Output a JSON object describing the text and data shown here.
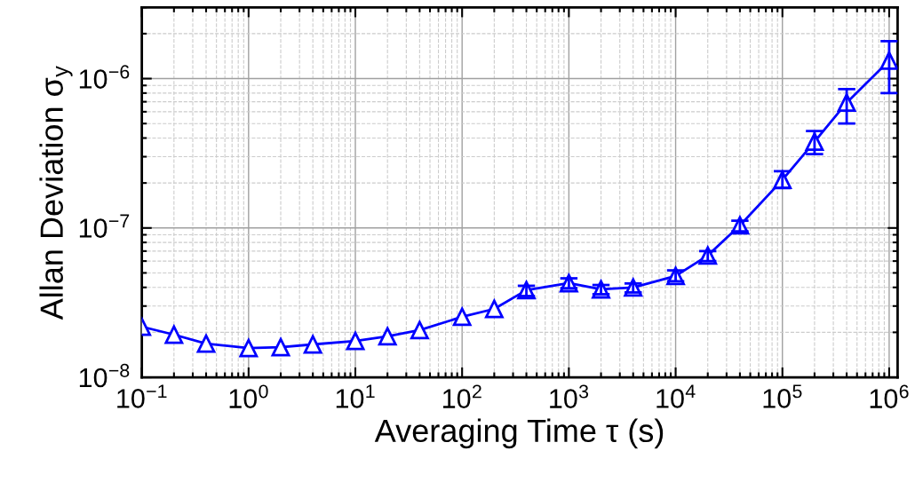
{
  "chart_data": {
    "type": "line",
    "xlabel": "Averaging Time τ (s)",
    "ylabel": "Allan Deviation σ$_{y}$",
    "log": "xy",
    "grid": true,
    "marker": "triangle",
    "line_style": "solid",
    "xlim": [
      0.1,
      1200000
    ],
    "ylim": [
      1e-08,
      3e-06
    ],
    "xticks": [
      {
        "value": 0.1,
        "label": "10$^{−1}$"
      },
      {
        "value": 1,
        "label": "10$^{0}$"
      },
      {
        "value": 10,
        "label": "10$^{1}$"
      },
      {
        "value": 100,
        "label": "10$^{2}$"
      },
      {
        "value": 1000,
        "label": "10$^{3}$"
      },
      {
        "value": 10000,
        "label": "10$^{4}$"
      },
      {
        "value": 100000,
        "label": "10$^{5}$"
      },
      {
        "value": 1000000,
        "label": "10$^{6}$"
      }
    ],
    "yticks": [
      {
        "value": 1e-08,
        "label": "10$^{−8}$"
      },
      {
        "value": 1e-07,
        "label": "10$^{−7}$"
      },
      {
        "value": 1e-06,
        "label": "10$^{−6}$"
      }
    ],
    "x": [
      0.1,
      0.2,
      0.4,
      1,
      2,
      4,
      10,
      20,
      40,
      100,
      200,
      400,
      1000,
      2000,
      4000,
      10000,
      20000,
      40000,
      100000,
      200000,
      400000,
      1000000
    ],
    "series": [
      {
        "color": "#0000ff",
        "values": [
          2.18e-08,
          1.93e-08,
          1.68e-08,
          1.57e-08,
          1.59e-08,
          1.66e-08,
          1.75e-08,
          1.88e-08,
          2.07e-08,
          2.54e-08,
          2.87e-08,
          3.83e-08,
          4.27e-08,
          3.88e-08,
          3.99e-08,
          4.77e-08,
          6.54e-08,
          1.04e-07,
          2.1e-07,
          3.78e-07,
          6.9e-07,
          1.32e-06
        ],
        "errors": [
          null,
          null,
          null,
          null,
          null,
          null,
          null,
          null,
          null,
          null,
          null,
          [
            3.5e-08,
            4.1e-08
          ],
          [
            3.95e-08,
            4.6e-08
          ],
          [
            3.6e-08,
            4.15e-08
          ],
          [
            3.7e-08,
            4.25e-08
          ],
          [
            4.4e-08,
            5.2e-08
          ],
          [
            6e-08,
            7e-08
          ],
          [
            9.5e-08,
            1.12e-07
          ],
          [
            1.85e-07,
            2.4e-07
          ],
          [
            3.12e-07,
            4.45e-07
          ],
          [
            5e-07,
            8.5e-07
          ],
          [
            8e-07,
            1.78e-06
          ]
        ]
      }
    ]
  }
}
